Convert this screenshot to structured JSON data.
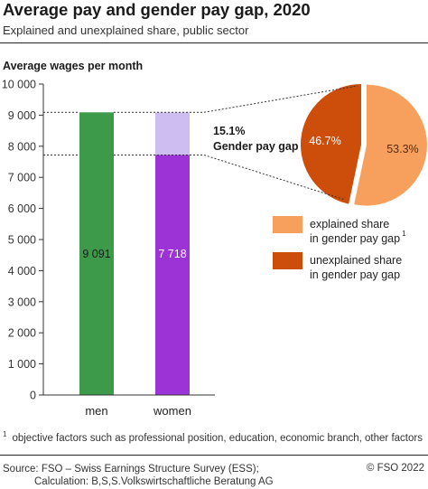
{
  "header": {
    "title": "Average pay and gender pay gap, 2020",
    "subtitle": "Explained and unexplained share, public sector"
  },
  "footer": {
    "footnote_marker": "1",
    "footnote": "objective factors such as professional position, education, economic branch, other factors",
    "source_line1": "Source: FSO – Swiss Earnings Structure Survey (ESS);",
    "source_line2": "Calculation: B,S,S.Volkswirtschaftliche Beratung AG",
    "copyright": "© FSO 2022"
  },
  "chart_data": [
    {
      "type": "bar",
      "ylabel": "Average wages per month",
      "categories": [
        "men",
        "women"
      ],
      "values": [
        9091,
        7718
      ],
      "value_labels": [
        "9 091",
        "7 718"
      ],
      "gap": 1373,
      "ylim": [
        0,
        10000
      ],
      "yticks": [
        0,
        1000,
        2000,
        3000,
        4000,
        5000,
        6000,
        7000,
        8000,
        9000,
        10000
      ],
      "ytick_labels": [
        "0",
        "1 000",
        "2 000",
        "3 000",
        "4 000",
        "5 000",
        "6 000",
        "7 000",
        "8 000",
        "9 000",
        "10 000"
      ],
      "grid": false,
      "colors": {
        "men": "#3d9a4a",
        "women": "#9b33d6",
        "gap": "#cdbdf0"
      },
      "gap_annotation": {
        "percent": "15.1%",
        "label": "Gender pay gap"
      }
    },
    {
      "type": "pie",
      "slices": [
        {
          "label": "explained share in gender pay gap",
          "value": 53.3,
          "display": "53.3%",
          "color": "#f7a05e",
          "exploded": true
        },
        {
          "label": "unexplained share in gender pay gap",
          "value": 46.7,
          "display": "46.7%",
          "color": "#cc4e0a",
          "exploded": false
        }
      ],
      "legend": {
        "placement": "right",
        "items": [
          {
            "line1": "explained share",
            "line2": "in gender pay gap",
            "sup": "1",
            "color": "#f7a05e"
          },
          {
            "line1": "unexplained share",
            "line2": "in gender pay gap",
            "sup": "",
            "color": "#cc4e0a"
          }
        ]
      }
    }
  ]
}
